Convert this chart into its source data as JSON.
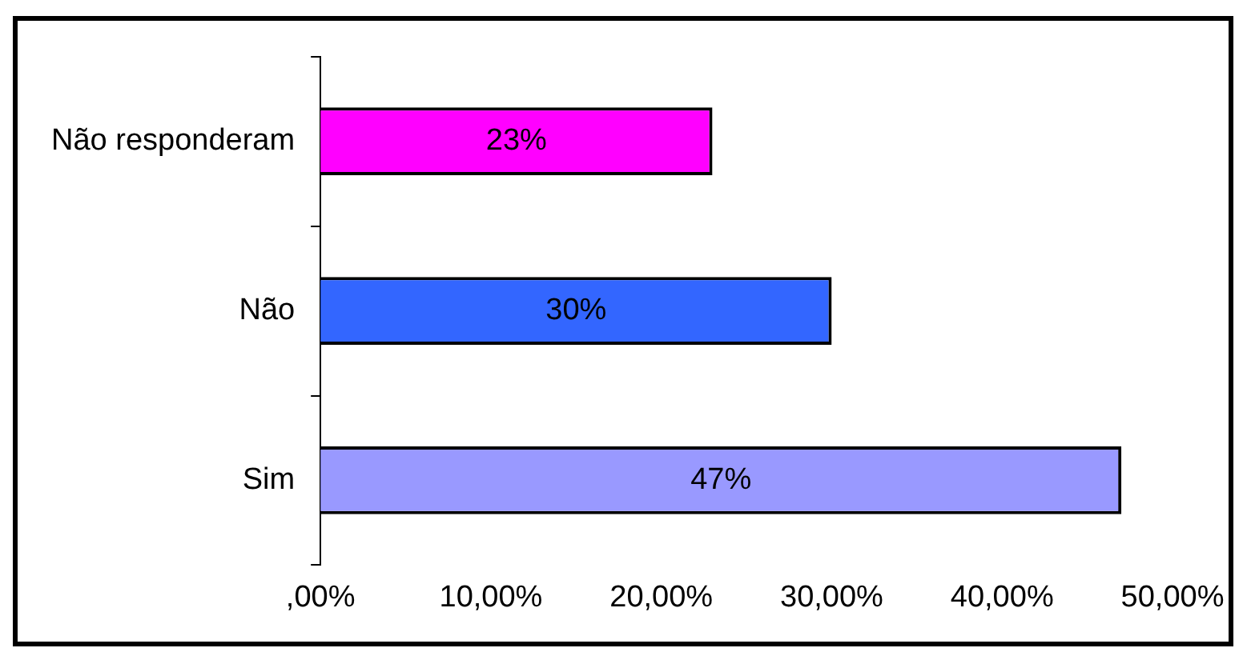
{
  "chart_data": {
    "type": "bar",
    "orientation": "horizontal",
    "categories": [
      "Não responderam",
      "Não",
      "Sim"
    ],
    "values": [
      23,
      30,
      47
    ],
    "colors": [
      "#ff00ff",
      "#3366ff",
      "#9999ff"
    ],
    "value_labels": [
      "23%",
      "30%",
      "47%"
    ],
    "xlim": [
      0,
      50
    ],
    "xticks": [
      {
        "value": 0,
        "label": ",00%"
      },
      {
        "value": 10,
        "label": "10,00%"
      },
      {
        "value": 20,
        "label": "20,00%"
      },
      {
        "value": 30,
        "label": "30,00%"
      },
      {
        "value": 40,
        "label": "40,00%"
      },
      {
        "value": 50,
        "label": "50,00%"
      }
    ],
    "grid": false,
    "legend": false
  }
}
